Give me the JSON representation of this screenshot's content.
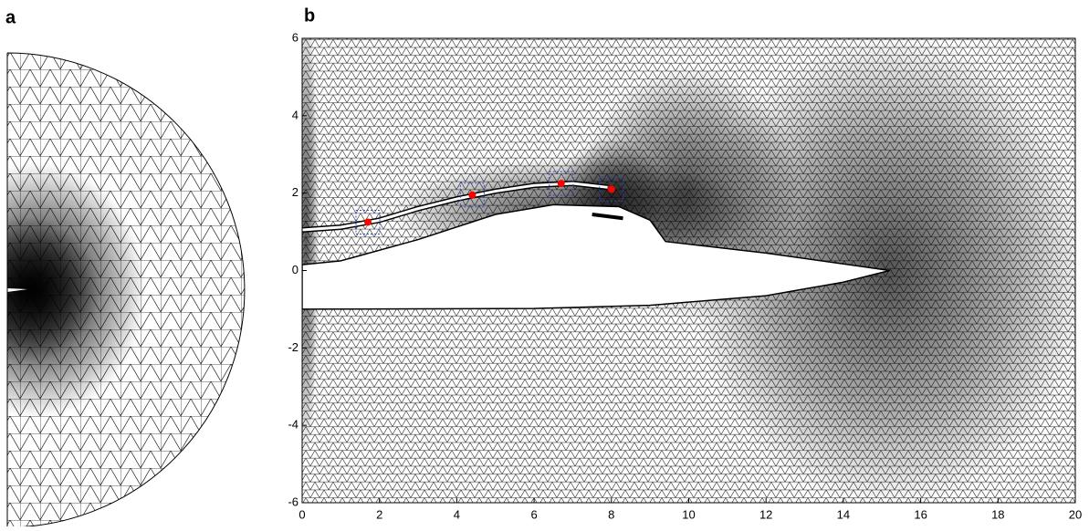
{
  "panel_a": {
    "title": "a"
  },
  "chart_data": {
    "type": "scatter",
    "title": "b",
    "x": [
      1.7,
      4.4,
      6.7,
      8.0
    ],
    "values": [
      1.25,
      1.95,
      2.25,
      2.1
    ],
    "color": "#ff0000",
    "xlim": [
      0,
      20
    ],
    "ylim": [
      -6,
      6
    ],
    "xticks": [
      0,
      2,
      4,
      6,
      8,
      10,
      12,
      14,
      16,
      18,
      20
    ],
    "yticks": [
      -6,
      -4,
      -2,
      0,
      2,
      4,
      6
    ]
  }
}
